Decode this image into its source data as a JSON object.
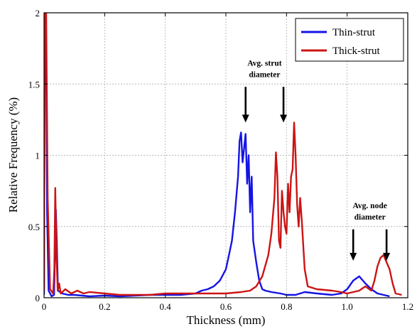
{
  "chart_data": {
    "type": "line",
    "title": "",
    "xlabel": "Thickness (mm)",
    "ylabel": "Relative Frequency (%)",
    "xlim": [
      0,
      1.2
    ],
    "ylim": [
      0,
      2
    ],
    "x_ticks": [
      "0",
      "0.2",
      "0.4",
      "0.6",
      "0.8",
      "1.0",
      "1.2"
    ],
    "y_ticks": [
      "0",
      "0.5",
      "1",
      "1.5",
      "2"
    ],
    "grid": true,
    "legend_position": "top-right",
    "colors": {
      "thin": "#1414e6",
      "thick": "#cc1414"
    },
    "series": [
      {
        "name": "Thin-strut",
        "color": "#1414e6",
        "points": [
          [
            0.0,
            0.02
          ],
          [
            0.002,
            2.0
          ],
          [
            0.006,
            2.0
          ],
          [
            0.01,
            0.6
          ],
          [
            0.015,
            0.05
          ],
          [
            0.025,
            0.01
          ],
          [
            0.033,
            0.02
          ],
          [
            0.036,
            0.3
          ],
          [
            0.039,
            0.62
          ],
          [
            0.042,
            0.4
          ],
          [
            0.046,
            0.05
          ],
          [
            0.06,
            0.03
          ],
          [
            0.08,
            0.02
          ],
          [
            0.1,
            0.02
          ],
          [
            0.15,
            0.01
          ],
          [
            0.2,
            0.015
          ],
          [
            0.25,
            0.01
          ],
          [
            0.3,
            0.015
          ],
          [
            0.35,
            0.02
          ],
          [
            0.4,
            0.02
          ],
          [
            0.45,
            0.02
          ],
          [
            0.5,
            0.03
          ],
          [
            0.52,
            0.05
          ],
          [
            0.54,
            0.06
          ],
          [
            0.56,
            0.08
          ],
          [
            0.58,
            0.12
          ],
          [
            0.6,
            0.2
          ],
          [
            0.61,
            0.3
          ],
          [
            0.62,
            0.4
          ],
          [
            0.63,
            0.6
          ],
          [
            0.64,
            0.85
          ],
          [
            0.645,
            1.1
          ],
          [
            0.65,
            1.16
          ],
          [
            0.655,
            0.95
          ],
          [
            0.66,
            1.05
          ],
          [
            0.665,
            1.15
          ],
          [
            0.67,
            0.8
          ],
          [
            0.675,
            1.0
          ],
          [
            0.68,
            0.6
          ],
          [
            0.685,
            0.85
          ],
          [
            0.69,
            0.4
          ],
          [
            0.7,
            0.25
          ],
          [
            0.71,
            0.12
          ],
          [
            0.72,
            0.06
          ],
          [
            0.73,
            0.05
          ],
          [
            0.75,
            0.04
          ],
          [
            0.78,
            0.03
          ],
          [
            0.8,
            0.02
          ],
          [
            0.83,
            0.02
          ],
          [
            0.86,
            0.04
          ],
          [
            0.9,
            0.03
          ],
          [
            0.95,
            0.02
          ],
          [
            0.98,
            0.03
          ],
          [
            1.0,
            0.06
          ],
          [
            1.02,
            0.12
          ],
          [
            1.04,
            0.15
          ],
          [
            1.06,
            0.1
          ],
          [
            1.08,
            0.06
          ],
          [
            1.1,
            0.03
          ],
          [
            1.12,
            0.02
          ],
          [
            1.14,
            0.01
          ]
        ]
      },
      {
        "name": "Thick-strut",
        "color": "#cc1414",
        "points": [
          [
            0.0,
            0.05
          ],
          [
            0.002,
            2.0
          ],
          [
            0.007,
            2.0
          ],
          [
            0.012,
            0.7
          ],
          [
            0.02,
            0.06
          ],
          [
            0.03,
            0.03
          ],
          [
            0.034,
            0.2
          ],
          [
            0.037,
            0.77
          ],
          [
            0.041,
            0.3
          ],
          [
            0.045,
            0.05
          ],
          [
            0.05,
            0.1
          ],
          [
            0.055,
            0.03
          ],
          [
            0.07,
            0.06
          ],
          [
            0.09,
            0.03
          ],
          [
            0.11,
            0.05
          ],
          [
            0.13,
            0.03
          ],
          [
            0.15,
            0.04
          ],
          [
            0.2,
            0.03
          ],
          [
            0.25,
            0.02
          ],
          [
            0.3,
            0.02
          ],
          [
            0.35,
            0.02
          ],
          [
            0.4,
            0.03
          ],
          [
            0.45,
            0.03
          ],
          [
            0.5,
            0.03
          ],
          [
            0.55,
            0.03
          ],
          [
            0.6,
            0.03
          ],
          [
            0.65,
            0.04
          ],
          [
            0.68,
            0.05
          ],
          [
            0.7,
            0.08
          ],
          [
            0.72,
            0.15
          ],
          [
            0.74,
            0.3
          ],
          [
            0.75,
            0.45
          ],
          [
            0.76,
            0.7
          ],
          [
            0.765,
            1.02
          ],
          [
            0.77,
            0.85
          ],
          [
            0.775,
            0.4
          ],
          [
            0.78,
            0.35
          ],
          [
            0.785,
            0.75
          ],
          [
            0.79,
            0.6
          ],
          [
            0.795,
            0.5
          ],
          [
            0.8,
            0.45
          ],
          [
            0.805,
            0.8
          ],
          [
            0.81,
            0.6
          ],
          [
            0.815,
            0.85
          ],
          [
            0.82,
            0.9
          ],
          [
            0.825,
            1.23
          ],
          [
            0.83,
            1.0
          ],
          [
            0.835,
            0.65
          ],
          [
            0.84,
            0.5
          ],
          [
            0.845,
            0.7
          ],
          [
            0.85,
            0.55
          ],
          [
            0.86,
            0.2
          ],
          [
            0.87,
            0.08
          ],
          [
            0.9,
            0.06
          ],
          [
            0.95,
            0.05
          ],
          [
            0.98,
            0.04
          ],
          [
            1.0,
            0.03
          ],
          [
            1.02,
            0.04
          ],
          [
            1.04,
            0.05
          ],
          [
            1.06,
            0.08
          ],
          [
            1.08,
            0.05
          ],
          [
            1.09,
            0.12
          ],
          [
            1.1,
            0.22
          ],
          [
            1.11,
            0.28
          ],
          [
            1.12,
            0.3
          ],
          [
            1.13,
            0.25
          ],
          [
            1.14,
            0.2
          ],
          [
            1.15,
            0.1
          ],
          [
            1.16,
            0.03
          ],
          [
            1.18,
            0.02
          ]
        ]
      }
    ],
    "annotations": [
      {
        "text_lines": [
          "Avg. strut",
          "diameter"
        ],
        "arrow_x": [
          0.665,
          0.79
        ],
        "arrow_from_y": 1.5,
        "arrow_to_y": 1.23
      },
      {
        "text_lines": [
          "Avg. node",
          "diameter"
        ],
        "arrow_x": [
          1.02,
          1.13
        ],
        "arrow_from_y": 0.5,
        "arrow_to_y": 0.26
      }
    ]
  }
}
